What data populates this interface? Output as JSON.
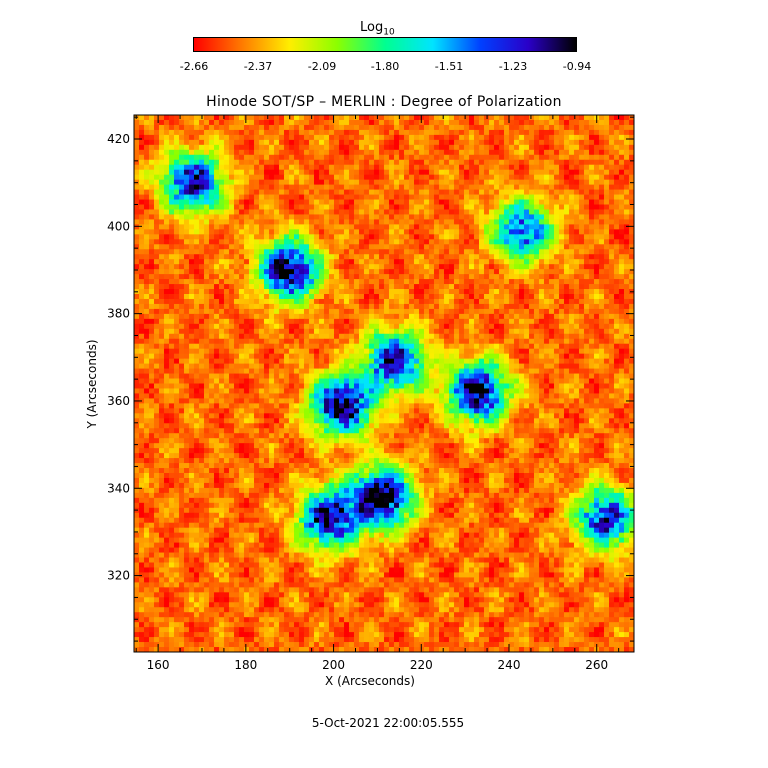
{
  "colorbar": {
    "title": "Log",
    "title_sub": "10",
    "tick_labels": [
      "-2.66",
      "-2.37",
      "-2.09",
      "-1.80",
      "-1.51",
      "-1.23",
      "-0.94"
    ],
    "range": [
      -2.66,
      -0.94
    ],
    "colors": [
      "#ff0000",
      "#ff7a00",
      "#ffee00",
      "#8bff00",
      "#00ff90",
      "#00e4ff",
      "#0040ff",
      "#2a00c8",
      "#000000"
    ]
  },
  "chart_data": {
    "type": "heatmap",
    "title": "Hinode SOT/SP – MERLIN : Degree of Polarization",
    "xlabel": "X (Arcseconds)",
    "ylabel": "Y (Arcseconds)",
    "xlim": [
      154.5,
      268.5
    ],
    "ylim": [
      302.5,
      425.5
    ],
    "x_ticks": [
      160,
      180,
      200,
      220,
      240,
      260
    ],
    "y_ticks": [
      320,
      340,
      360,
      380,
      400,
      420
    ],
    "x_tick_labels": [
      "160",
      "180",
      "200",
      "220",
      "240",
      "260"
    ],
    "y_tick_labels": [
      "320",
      "340",
      "360",
      "380",
      "400",
      "420"
    ],
    "value_range": [
      -2.66,
      -0.94
    ],
    "high_polarization_regions": [
      {
        "x": 190,
        "y": 390,
        "peak": -1.05
      },
      {
        "x": 168,
        "y": 410,
        "peak": -1.2
      },
      {
        "x": 202,
        "y": 359,
        "peak": -1.0
      },
      {
        "x": 233,
        "y": 362,
        "peak": -1.05
      },
      {
        "x": 214,
        "y": 369,
        "peak": -1.2
      },
      {
        "x": 211,
        "y": 338,
        "peak": -0.95
      },
      {
        "x": 199,
        "y": 333,
        "peak": -1.1
      },
      {
        "x": 243,
        "y": 399,
        "peak": -1.4
      },
      {
        "x": 262,
        "y": 333,
        "peak": -1.3
      }
    ]
  },
  "timestamp": "5-Oct-2021 22:00:05.555"
}
